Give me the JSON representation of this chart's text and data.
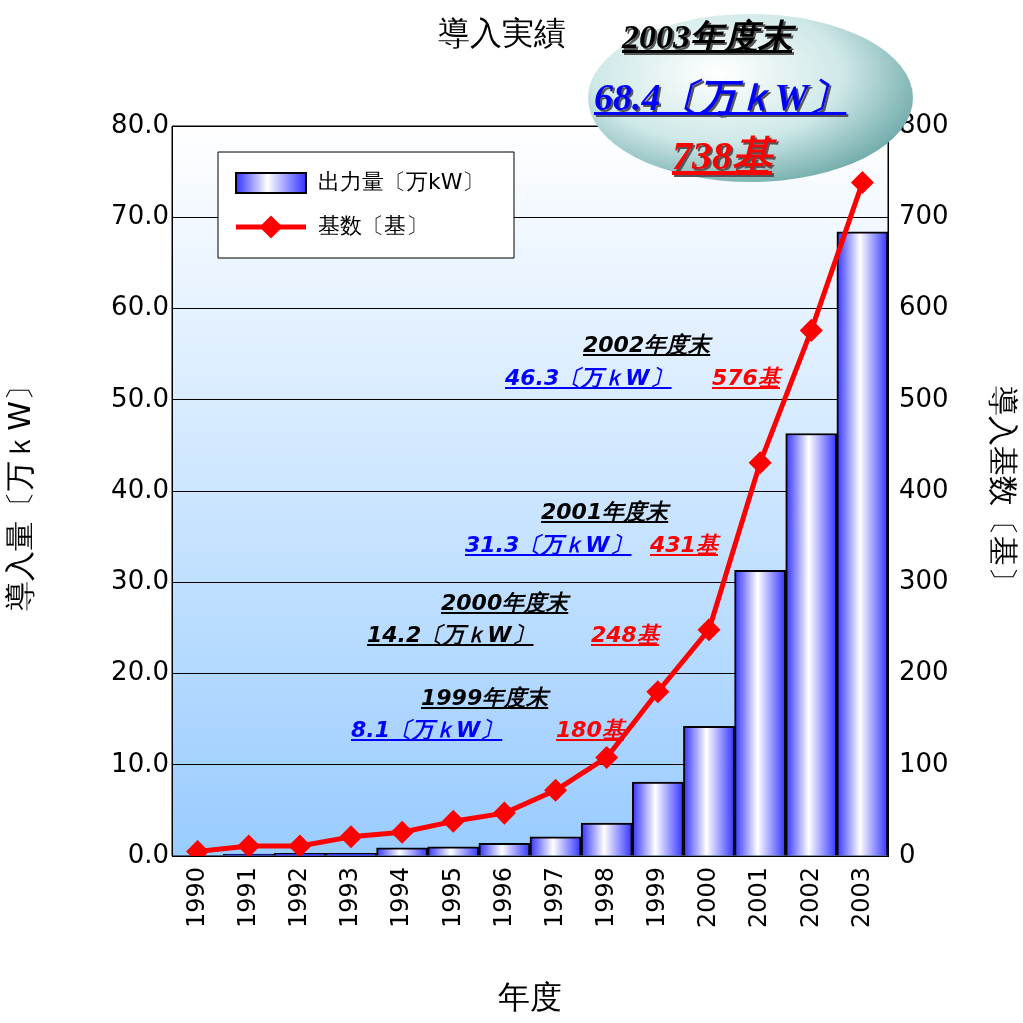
{
  "chart_data": {
    "type": "bar",
    "title": "導入実績",
    "xlabel": "年度",
    "ylabel": "導入量〔万ｋW〕",
    "y2label": "導入基数〔基〕",
    "categories": [
      "1990",
      "1991",
      "1992",
      "1993",
      "1994",
      "1995",
      "1996",
      "1997",
      "1998",
      "1999",
      "2000",
      "2001",
      "2002",
      "2003"
    ],
    "series": [
      {
        "name": "出力量〔万kW〕",
        "color": "#3333ff",
        "values": [
          null,
          0.2,
          0.3,
          0.3,
          0.9,
          1.0,
          1.4,
          2.1,
          3.6,
          8.1,
          14.2,
          31.3,
          46.3,
          68.4
        ]
      },
      {
        "name": "基数〔基〕",
        "type": "line",
        "axis": "y2",
        "color": "#ff0000",
        "marker": "diamond",
        "values": [
          5,
          11,
          11,
          21,
          26,
          38,
          47,
          72,
          108,
          180,
          248,
          431,
          576,
          738
        ]
      }
    ],
    "ylim": [
      0,
      80
    ],
    "yticks": [
      {
        "value": 0,
        "label": "0.0"
      },
      {
        "value": 10,
        "label": "10.0"
      },
      {
        "value": 20,
        "label": "20.0"
      },
      {
        "value": 30,
        "label": "30.0"
      },
      {
        "value": 40,
        "label": "40.0"
      },
      {
        "value": 50,
        "label": "50.0"
      },
      {
        "value": 60,
        "label": "60.0"
      },
      {
        "value": 70,
        "label": "70.0"
      },
      {
        "value": 80,
        "label": "80.0"
      }
    ],
    "y2lim": [
      0,
      800
    ],
    "y2ticks": [
      0,
      100,
      200,
      300,
      400,
      500,
      600,
      700,
      800
    ],
    "grid": "y",
    "legend": "top left",
    "annotations": [
      "2003年度末",
      "68.4〔万ｋW〕",
      "738基",
      "2002年度末",
      "46.3〔万ｋW〕",
      "576基",
      "2001年度末",
      "31.3〔万ｋW〕",
      "431基",
      "2000年度末",
      "14.2〔万ｋW〕",
      "248基",
      "1999年度末",
      "8.1〔万ｋW〕",
      "180基"
    ]
  }
}
